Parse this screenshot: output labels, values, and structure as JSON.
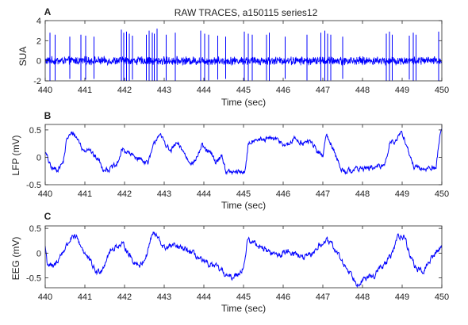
{
  "figure_title": "RAW TRACES, a150115 series12",
  "colors": {
    "trace": "#0000ff",
    "axis": "#262626",
    "background": "#ffffff"
  },
  "chart_data": [
    {
      "type": "line",
      "panel": "A",
      "title": "",
      "xlabel": "Time (sec)",
      "ylabel": "SUA",
      "xlim": [
        440,
        450
      ],
      "ylim": [
        -2,
        4
      ],
      "xticks": [
        440,
        441,
        442,
        443,
        444,
        445,
        446,
        447,
        448,
        449,
        450
      ],
      "yticks": [
        -2,
        0,
        2,
        4
      ],
      "grid": false,
      "signal": "spike",
      "noise_amplitude": 0.35,
      "spikes": [
        {
          "t": 440.12,
          "amp": 2.8
        },
        {
          "t": 440.25,
          "amp": 2.6
        },
        {
          "t": 440.62,
          "amp": 2.4
        },
        {
          "t": 440.9,
          "amp": 2.6
        },
        {
          "t": 441.02,
          "amp": 2.5
        },
        {
          "t": 441.23,
          "amp": 2.4
        },
        {
          "t": 441.92,
          "amp": 3.1
        },
        {
          "t": 441.98,
          "amp": 2.8
        },
        {
          "t": 442.05,
          "amp": 2.9
        },
        {
          "t": 442.12,
          "amp": 2.7
        },
        {
          "t": 442.2,
          "amp": 2.5
        },
        {
          "t": 442.55,
          "amp": 2.6
        },
        {
          "t": 442.62,
          "amp": 3.0
        },
        {
          "t": 442.7,
          "amp": 2.8
        },
        {
          "t": 442.75,
          "amp": 2.7
        },
        {
          "t": 442.82,
          "amp": 3.2
        },
        {
          "t": 443.05,
          "amp": 2.6
        },
        {
          "t": 443.28,
          "amp": 2.8
        },
        {
          "t": 443.92,
          "amp": 3.0
        },
        {
          "t": 444.02,
          "amp": 2.7
        },
        {
          "t": 444.12,
          "amp": 2.6
        },
        {
          "t": 444.35,
          "amp": 2.5
        },
        {
          "t": 444.55,
          "amp": 2.4
        },
        {
          "t": 445.02,
          "amp": 2.9
        },
        {
          "t": 445.12,
          "amp": 2.7
        },
        {
          "t": 445.22,
          "amp": 2.6
        },
        {
          "t": 445.58,
          "amp": 2.6
        },
        {
          "t": 445.65,
          "amp": 2.8
        },
        {
          "t": 446.05,
          "amp": 2.4
        },
        {
          "t": 446.6,
          "amp": 2.6
        },
        {
          "t": 446.95,
          "amp": 2.8
        },
        {
          "t": 447.05,
          "amp": 3.0
        },
        {
          "t": 447.12,
          "amp": 2.7
        },
        {
          "t": 447.2,
          "amp": 2.6
        },
        {
          "t": 447.5,
          "amp": 2.4
        },
        {
          "t": 448.6,
          "amp": 2.7
        },
        {
          "t": 448.68,
          "amp": 2.9
        },
        {
          "t": 448.75,
          "amp": 2.6
        },
        {
          "t": 449.18,
          "amp": 2.5
        },
        {
          "t": 449.28,
          "amp": 2.8
        },
        {
          "t": 449.35,
          "amp": 2.6
        },
        {
          "t": 449.92,
          "amp": 2.9
        }
      ]
    },
    {
      "type": "line",
      "panel": "B",
      "title": "",
      "xlabel": "Time (sec)",
      "ylabel": "LFP (mV)",
      "xlim": [
        440,
        450
      ],
      "ylim": [
        -0.5,
        0.6
      ],
      "xticks": [
        440,
        441,
        442,
        443,
        444,
        445,
        446,
        447,
        448,
        449,
        450
      ],
      "yticks": [
        -0.5,
        0,
        0.5
      ],
      "grid": false,
      "signal": "continuous",
      "noise_amplitude": 0.04,
      "x": [
        440.0,
        440.05,
        440.15,
        440.3,
        440.45,
        440.55,
        440.7,
        440.85,
        440.95,
        441.1,
        441.2,
        441.35,
        441.45,
        441.6,
        441.8,
        441.95,
        442.15,
        442.3,
        442.45,
        442.6,
        442.75,
        442.85,
        443.0,
        443.15,
        443.3,
        443.45,
        443.6,
        443.75,
        443.95,
        444.1,
        444.2,
        444.3,
        444.45,
        444.55,
        444.7,
        444.9,
        445.05,
        445.12,
        445.3,
        445.5,
        445.7,
        445.9,
        446.1,
        446.3,
        446.5,
        446.7,
        446.85,
        447.0,
        447.1,
        447.2,
        447.3,
        447.45,
        447.6,
        447.8,
        448.0,
        448.2,
        448.4,
        448.55,
        448.7,
        448.85,
        449.0,
        449.1,
        449.2,
        449.3,
        449.45,
        449.6,
        449.75,
        449.85,
        449.95,
        450.0
      ],
      "y": [
        0.1,
        0.0,
        -0.2,
        -0.22,
        -0.1,
        0.35,
        0.45,
        0.3,
        0.12,
        0.18,
        0.05,
        -0.05,
        -0.2,
        -0.22,
        -0.15,
        0.15,
        0.05,
        0.0,
        -0.05,
        -0.1,
        0.25,
        0.42,
        0.3,
        0.1,
        0.25,
        0.15,
        -0.05,
        -0.1,
        0.2,
        0.1,
        0.05,
        -0.1,
        0.05,
        -0.25,
        -0.28,
        -0.27,
        -0.25,
        0.25,
        0.35,
        0.3,
        0.35,
        0.3,
        0.2,
        0.35,
        0.25,
        0.3,
        0.1,
        0.05,
        0.4,
        0.25,
        0.1,
        -0.22,
        -0.25,
        -0.22,
        -0.2,
        -0.2,
        -0.18,
        -0.15,
        0.3,
        0.3,
        0.45,
        0.25,
        0.0,
        -0.18,
        -0.22,
        -0.2,
        -0.2,
        -0.2,
        0.4,
        0.5
      ]
    },
    {
      "type": "line",
      "panel": "C",
      "title": "",
      "xlabel": "Time (sec)",
      "ylabel": "EEG (mV)",
      "xlim": [
        440,
        450
      ],
      "ylim": [
        -0.7,
        0.55
      ],
      "xticks": [
        440,
        441,
        442,
        443,
        444,
        445,
        446,
        447,
        448,
        449,
        450
      ],
      "yticks": [
        -0.5,
        0,
        0.5
      ],
      "grid": false,
      "signal": "continuous",
      "noise_amplitude": 0.05,
      "x": [
        440.0,
        440.05,
        440.2,
        440.35,
        440.5,
        440.65,
        440.8,
        441.0,
        441.15,
        441.3,
        441.45,
        441.6,
        441.8,
        442.0,
        442.2,
        442.4,
        442.55,
        442.7,
        442.8,
        443.0,
        443.2,
        443.4,
        443.6,
        443.8,
        444.0,
        444.2,
        444.35,
        444.5,
        444.65,
        444.8,
        445.0,
        445.1,
        445.3,
        445.5,
        445.7,
        445.9,
        446.1,
        446.3,
        446.5,
        446.7,
        446.9,
        447.1,
        447.3,
        447.5,
        447.7,
        447.85,
        448.0,
        448.15,
        448.3,
        448.45,
        448.6,
        448.75,
        448.9,
        449.05,
        449.2,
        449.35,
        449.5,
        449.7,
        449.85,
        450.0
      ],
      "y": [
        0.15,
        -0.2,
        -0.3,
        -0.1,
        0.1,
        0.3,
        0.3,
        0.0,
        -0.2,
        -0.4,
        -0.3,
        0.0,
        0.15,
        0.15,
        -0.15,
        -0.25,
        -0.05,
        0.4,
        0.35,
        0.1,
        0.15,
        0.1,
        0.05,
        -0.05,
        -0.2,
        -0.25,
        -0.3,
        -0.4,
        -0.5,
        -0.45,
        -0.3,
        0.25,
        0.2,
        0.1,
        0.0,
        -0.05,
        0.05,
        0.0,
        -0.1,
        -0.05,
        0.15,
        0.25,
        0.1,
        -0.2,
        -0.4,
        -0.6,
        -0.55,
        -0.5,
        -0.45,
        -0.3,
        -0.2,
        0.0,
        0.35,
        0.35,
        -0.05,
        -0.3,
        -0.4,
        -0.15,
        0.0,
        0.15
      ]
    }
  ]
}
